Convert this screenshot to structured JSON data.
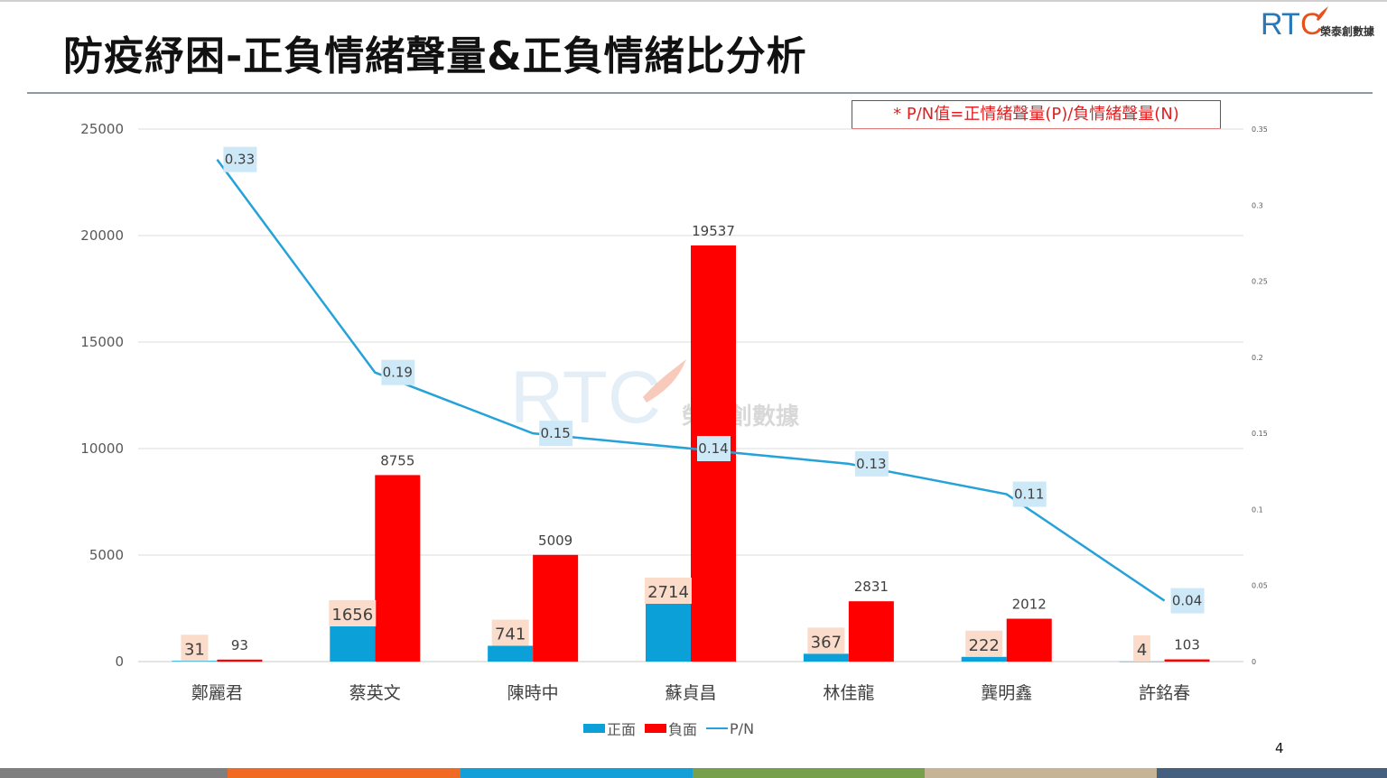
{
  "slide": {
    "title": "防疫紓困-正負情緒聲量&正負情緒比分析",
    "note": "* P/N值=正情緒聲量(P)/負情緒聲量(N)",
    "page_number": "4",
    "logo_text": "榮泰創數據",
    "logo_letters": "RTC",
    "footer_colors": [
      "#7f7f7f",
      "#f06a24",
      "#13a0d8",
      "#76a04b",
      "#c7b497",
      "#44607e"
    ]
  },
  "chart_data": {
    "type": "bar",
    "categories": [
      "鄭麗君",
      "蔡英文",
      "陳時中",
      "蘇貞昌",
      "林佳龍",
      "龔明鑫",
      "許銘春"
    ],
    "series": [
      {
        "name": "正面",
        "type": "bar",
        "axis": "left",
        "color": "#0ba1d8",
        "values": [
          31,
          1656,
          741,
          2714,
          367,
          222,
          4
        ]
      },
      {
        "name": "負面",
        "type": "bar",
        "axis": "left",
        "color": "#fe0000",
        "values": [
          93,
          8755,
          5009,
          19537,
          2831,
          2012,
          103
        ]
      },
      {
        "name": "P/N",
        "type": "line",
        "axis": "right",
        "color": "#25a2d8",
        "values": [
          0.33,
          0.19,
          0.15,
          0.14,
          0.13,
          0.11,
          0.04
        ]
      }
    ],
    "ylim": [
      0,
      25000
    ],
    "yticks": [
      0,
      5000,
      10000,
      15000,
      20000,
      25000
    ],
    "y2lim": [
      0,
      0.35
    ],
    "y2ticks": [
      0,
      0.05,
      0.1,
      0.15,
      0.2,
      0.25,
      0.3,
      0.35
    ],
    "y2tick_labels": [
      "0",
      "0.05",
      "0.1",
      "0.15",
      "0.2",
      "0.25",
      "0.3",
      "0.35"
    ],
    "grid": true,
    "legend": "bottom",
    "watermark": {
      "letters": "RTC",
      "text": "榮泰創數據"
    }
  }
}
